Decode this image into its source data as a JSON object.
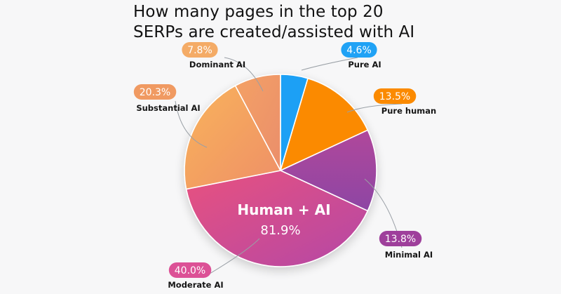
{
  "chart_data": {
    "type": "pie",
    "title_lines": [
      "How many pages in the top 20",
      "SERPs are created/assisted with AI"
    ],
    "slices": [
      {
        "label": "Pure AI",
        "value": 4.6,
        "value_label": "4.6%",
        "color": "#1ea0f5",
        "badge_color": "#20a2f5"
      },
      {
        "label": "Pure human",
        "value": 13.5,
        "value_label": "13.5%",
        "color": "#fb8a00",
        "badge_color": "#fb8a00"
      },
      {
        "label": "Minimal AI",
        "value": 13.8,
        "value_label": "13.8%",
        "color": "#a3479f",
        "badge_color": "#9e3f9b"
      },
      {
        "label": "Moderate AI",
        "value": 40.0,
        "value_label": "40.0%",
        "color": "#d6508a",
        "badge_color": "#dc5196"
      },
      {
        "label": "Substantial AI",
        "value": 20.3,
        "value_label": "20.3%",
        "color": "#f5a75c",
        "badge_color": "#f09a62"
      },
      {
        "label": "Dominant AI",
        "value": 7.8,
        "value_label": "7.8%",
        "color": "#ef9b66",
        "badge_color": "#f4ab66"
      }
    ],
    "center_annotation": {
      "label": "Human + AI",
      "value_label": "81.9%"
    }
  }
}
